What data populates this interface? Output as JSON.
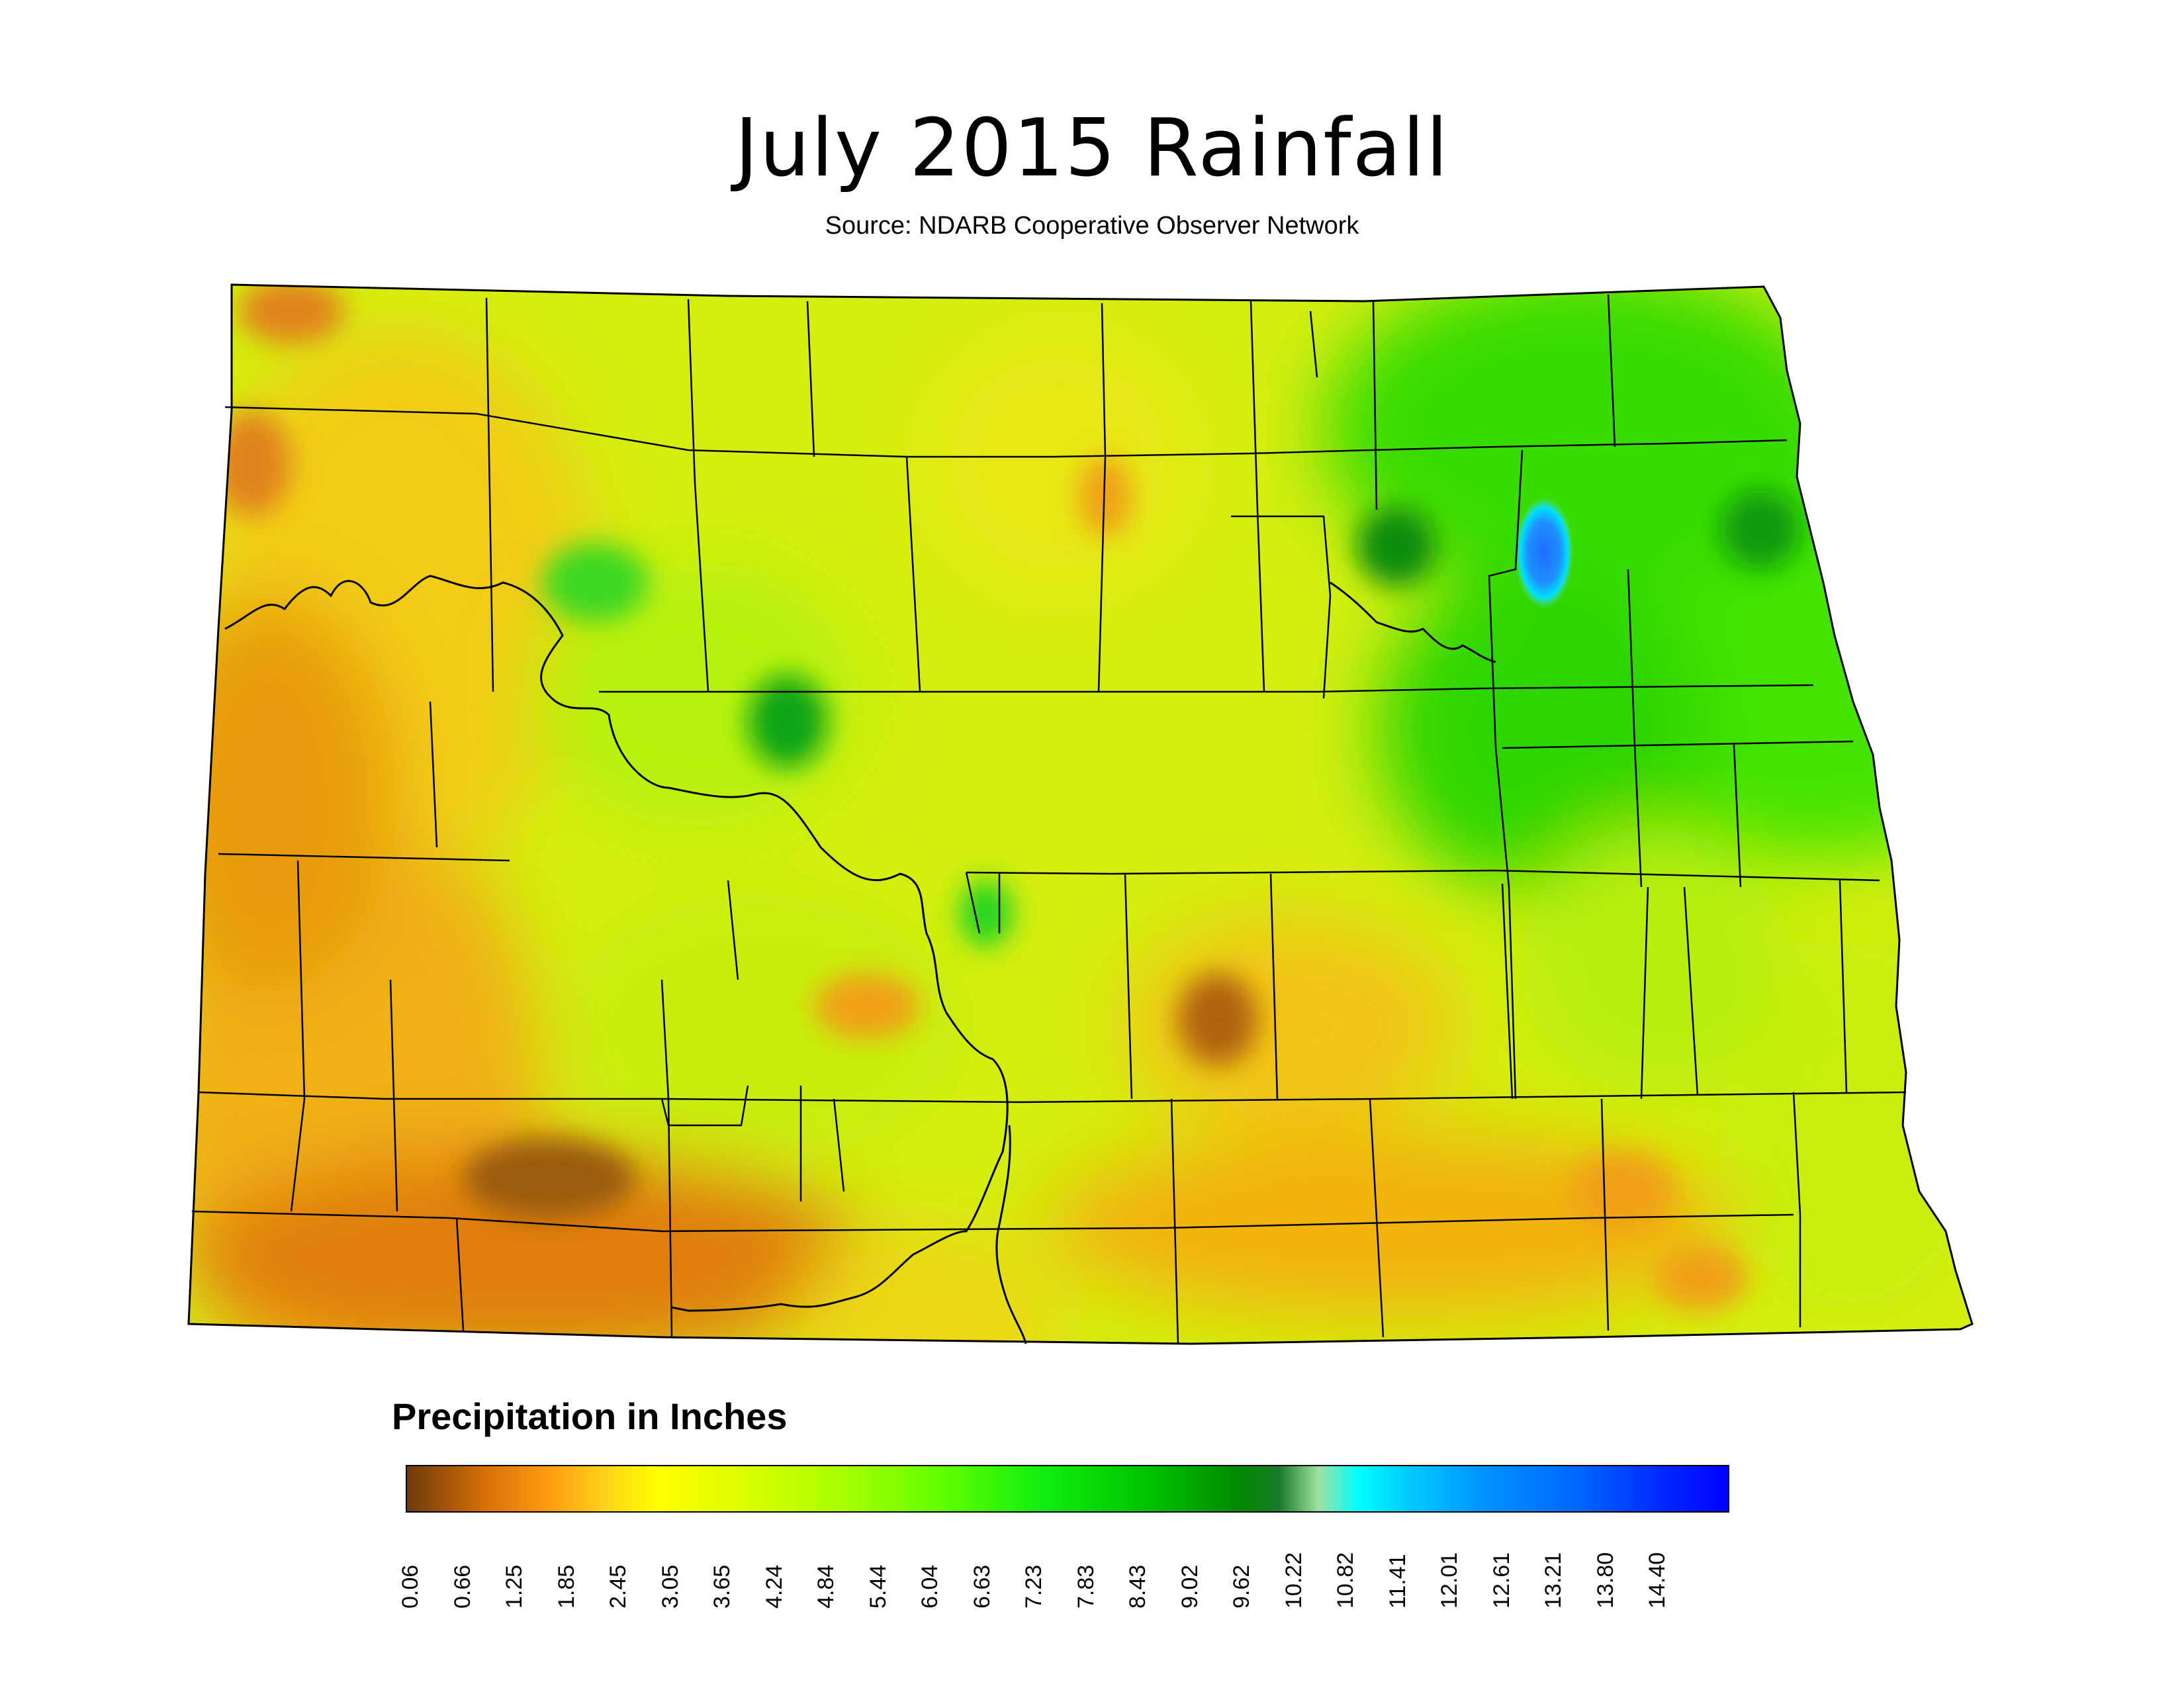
{
  "title": "July 2015 Rainfall",
  "subtitle": "Source: NDARB Cooperative Observer Network",
  "legend": {
    "title": "Precipitation in Inches",
    "ticks": [
      "0.06",
      "0.66",
      "1.25",
      "1.85",
      "2.45",
      "3.05",
      "3.65",
      "4.24",
      "4.84",
      "5.44",
      "6.04",
      "6.63",
      "7.23",
      "7.83",
      "8.43",
      "9.02",
      "9.62",
      "10.22",
      "10.82",
      "11.41",
      "12.01",
      "12.61",
      "13.21",
      "13.80",
      "14.40"
    ],
    "colors": [
      "#6b3a0a",
      "#d97008",
      "#ff9f10",
      "#ffd21a",
      "#ffff00",
      "#ddff00",
      "#a8ff00",
      "#66ff00",
      "#10ef10",
      "#00c400",
      "#008a00",
      "#00ffff",
      "#0090ff",
      "#0000ff"
    ]
  },
  "map": {
    "region": "North Dakota",
    "layer": "precipitation-in-inches",
    "boundaries": [
      "state-outline",
      "county-lines",
      "missouri-river"
    ]
  }
}
